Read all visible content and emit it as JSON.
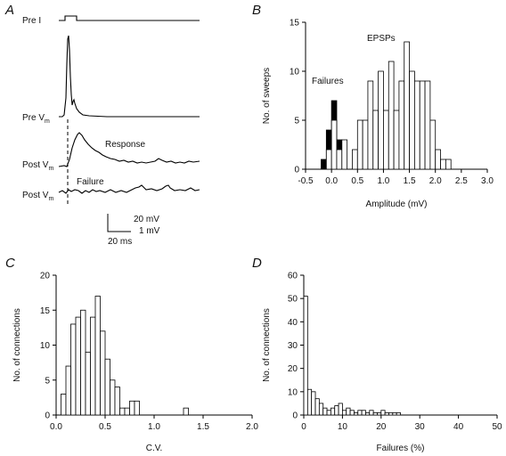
{
  "panels": {
    "a": {
      "letter": "A",
      "labels": {
        "pre_i": "Pre  I",
        "pre_vm": "Pre V",
        "pre_vm_sub": "m",
        "post_vm_1": "Post V",
        "post_vm_1_sub": "m",
        "post_vm_2": "Post V",
        "post_vm_2_sub": "m",
        "response": "Response",
        "failure": "Failure"
      },
      "scale_bar": {
        "v1": "20 mV",
        "v2": "1 mV",
        "t": "20 ms"
      }
    },
    "b": {
      "letter": "B"
    },
    "c": {
      "letter": "C"
    },
    "d": {
      "letter": "D"
    }
  },
  "chart_data": [
    {
      "id": "b",
      "type": "bar",
      "xlabel": "Amplitude (mV)",
      "ylabel": "No. of sweeps",
      "xlim": [
        -0.5,
        3.0
      ],
      "ylim": [
        0,
        15
      ],
      "xticks": [
        -0.5,
        0.0,
        0.5,
        1.0,
        1.5,
        2.0,
        2.5,
        3.0
      ],
      "xtick_labels": [
        "-0.5",
        "0.0",
        "0.5",
        "1.0",
        "1.5",
        "2.0",
        "2.5",
        "3.0"
      ],
      "yticks": [
        0,
        5,
        10,
        15
      ],
      "bin_width": 0.1,
      "annotations": [
        "Failures",
        "EPSPs"
      ],
      "series": [
        {
          "name": "Failures",
          "fill": "#000000",
          "bins": [
            -0.2,
            -0.1,
            0.0,
            0.1
          ],
          "values": [
            1,
            4,
            7,
            3
          ]
        },
        {
          "name": "EPSPs",
          "fill": "#ffffff",
          "bins": [
            -0.1,
            0.0,
            0.1,
            0.2,
            0.4,
            0.5,
            0.6,
            0.7,
            0.8,
            0.9,
            1.0,
            1.1,
            1.2,
            1.3,
            1.4,
            1.5,
            1.6,
            1.7,
            1.8,
            1.9,
            2.0,
            2.1,
            2.2
          ],
          "values": [
            2,
            5,
            2,
            3,
            2,
            5,
            5,
            9,
            6,
            10,
            6,
            11,
            6,
            9,
            13,
            10,
            9,
            9,
            9,
            5,
            2,
            1,
            1
          ]
        }
      ]
    },
    {
      "id": "c",
      "type": "bar",
      "xlabel": "C.V.",
      "ylabel": "No. of connections",
      "xlim": [
        0,
        2.0
      ],
      "ylim": [
        0,
        20
      ],
      "xticks": [
        0,
        0.5,
        1.0,
        1.5,
        2.0
      ],
      "xtick_labels": [
        "0.0",
        "0.5",
        "1.0",
        "1.5",
        "2.0"
      ],
      "yticks": [
        0,
        5,
        10,
        15,
        20
      ],
      "bin_width": 0.05,
      "series": [
        {
          "bins": [
            0.05,
            0.1,
            0.15,
            0.2,
            0.25,
            0.3,
            0.35,
            0.4,
            0.45,
            0.5,
            0.55,
            0.6,
            0.65,
            0.7,
            0.75,
            0.8,
            1.3
          ],
          "values": [
            3,
            7,
            13,
            14,
            15,
            9,
            14,
            17,
            12,
            8,
            5,
            4,
            1,
            1,
            2,
            2,
            1
          ]
        }
      ]
    },
    {
      "id": "d",
      "type": "bar",
      "xlabel": "Failures (%)",
      "ylabel": "No. of connections",
      "xlim": [
        0,
        50
      ],
      "ylim": [
        0,
        60
      ],
      "xticks": [
        0,
        10,
        20,
        30,
        40,
        50
      ],
      "xtick_labels": [
        "0",
        "10",
        "20",
        "30",
        "40",
        "50"
      ],
      "yticks": [
        0,
        10,
        20,
        30,
        40,
        50,
        60
      ],
      "bin_width": 1,
      "series": [
        {
          "bins": [
            0,
            1,
            2,
            3,
            4,
            5,
            6,
            7,
            8,
            9,
            10,
            11,
            12,
            13,
            14,
            15,
            16,
            17,
            18,
            19,
            20,
            21,
            22,
            23,
            24
          ],
          "values": [
            51,
            11,
            10,
            7,
            5,
            3,
            2,
            3,
            4,
            5,
            2,
            3,
            2,
            1,
            2,
            2,
            1,
            2,
            1,
            1,
            2,
            1,
            1,
            1,
            1
          ]
        }
      ]
    }
  ]
}
